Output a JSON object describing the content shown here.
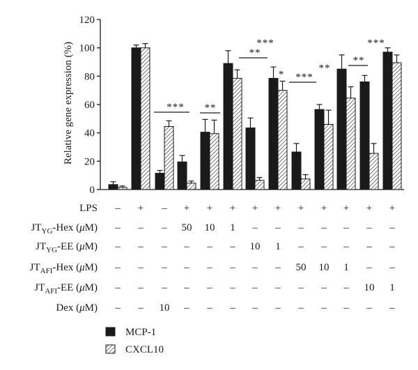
{
  "chart_data": {
    "type": "bar",
    "ylabel": "Relative gene expression (%)",
    "ylim": [
      0,
      120
    ],
    "yticks": [
      0,
      20,
      40,
      60,
      80,
      100,
      120
    ],
    "grid": false,
    "legend_position": "bottom-left",
    "series": [
      {
        "name": "MCP-1",
        "color": "#1a1a1a",
        "values": [
          3.5,
          100,
          11.5,
          19.5,
          40.5,
          89,
          43.5,
          78.5,
          26.5,
          56.5,
          85,
          76,
          97
        ],
        "errors": [
          2,
          2,
          2,
          4.5,
          9,
          9,
          7,
          8,
          6,
          3.5,
          10,
          4.5,
          3
        ]
      },
      {
        "name": "CXCL10",
        "color": "#ffffff",
        "pattern": "diagonal-hatch",
        "values": [
          1.5,
          100,
          44.5,
          4.5,
          39.5,
          78.5,
          6.5,
          70,
          7.5,
          46,
          64.5,
          25.5,
          89.5
        ],
        "errors": [
          1,
          3,
          4,
          1.5,
          9.5,
          6,
          2,
          6.5,
          3,
          10,
          8,
          7,
          5.5
        ]
      }
    ],
    "table": {
      "rows": [
        {
          "label": "LPS",
          "values": [
            "–",
            "+",
            "–",
            "+",
            "+",
            "+",
            "+",
            "+",
            "+",
            "+",
            "+",
            "+",
            "+"
          ]
        },
        {
          "label": "JT",
          "sub": "YG",
          "suffix": "-Hex (",
          "mu": "μ",
          "unit": "M)",
          "values": [
            "–",
            "–",
            "–",
            "50",
            "10",
            "1",
            "–",
            "–",
            "–",
            "–",
            "–",
            "–",
            "–"
          ]
        },
        {
          "label": "JT",
          "sub": "YG",
          "suffix": "-EE (",
          "mu": "μ",
          "unit": "M)",
          "values": [
            "–",
            "–",
            "–",
            "–",
            "–",
            "–",
            "10",
            "1",
            "–",
            "–",
            "–",
            "–",
            "–"
          ]
        },
        {
          "label": "JT",
          "sub": "AFI",
          "suffix": "-Hex (",
          "mu": "μ",
          "unit": "M)",
          "values": [
            "–",
            "–",
            "–",
            "–",
            "–",
            "–",
            "–",
            "–",
            "50",
            "10",
            "1",
            "–",
            "–"
          ]
        },
        {
          "label": "JT",
          "sub": "AFI",
          "suffix": "-EE (",
          "mu": "μ",
          "unit": "M)",
          "values": [
            "–",
            "–",
            "–",
            "–",
            "–",
            "–",
            "–",
            "–",
            "–",
            "–",
            "–",
            "10",
            "1"
          ]
        },
        {
          "label": "Dex (",
          "mu": "μ",
          "unit": "M)",
          "values": [
            "–",
            "–",
            "10",
            "–",
            "–",
            "–",
            "–",
            "–",
            "–",
            "–",
            "–",
            "–",
            "–"
          ]
        }
      ]
    },
    "significance": [
      {
        "label": "***",
        "from": 2,
        "to": 3,
        "line": true
      },
      {
        "label": "**",
        "from": 4,
        "to": 4,
        "line": true
      },
      {
        "label": "**",
        "from": 6,
        "to": 6,
        "line": true
      },
      {
        "label": "***",
        "from": 6,
        "to": 7,
        "line": false
      },
      {
        "label": "*",
        "from": 7,
        "to": 7,
        "line": false
      },
      {
        "label": "***",
        "from": 8,
        "to": 9,
        "line": true
      },
      {
        "label": "**",
        "from": 9,
        "to": 9,
        "line": false
      },
      {
        "label": "**",
        "from": 11,
        "to": 11,
        "line": true
      },
      {
        "label": "***",
        "from": 12,
        "to": 12,
        "line": false
      }
    ]
  }
}
